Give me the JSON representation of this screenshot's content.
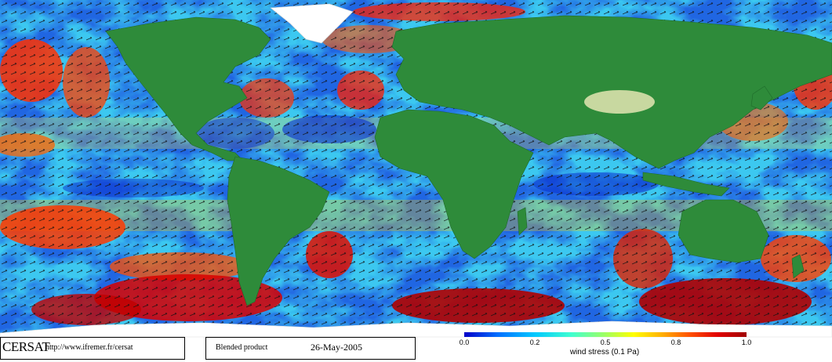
{
  "footer": {
    "brand": "CERSAT",
    "url": "http://www.ifremer.fr/cersat",
    "product": "Blended product",
    "date": "26-May-2005"
  },
  "colorbar": {
    "ticks": [
      "0.0",
      "0.2",
      "0.5",
      "0.8",
      "1.0"
    ],
    "unit_label": "wind stress (0.1 Pa)",
    "range": [
      0.0,
      1.0
    ],
    "colors": [
      "#0000c8",
      "#0070ff",
      "#00c8ff",
      "#40ffd0",
      "#a0ff60",
      "#ffff00",
      "#ffb000",
      "#ff5000",
      "#e00000",
      "#a00000"
    ]
  },
  "map_colors": {
    "ocean_low": "#0a40e0",
    "ocean_mid": "#30c0f0",
    "ocean_high": "#ff3000",
    "ocean_max": "#a00000",
    "land": "#2e8b3a",
    "land_high": "#c8d8a0",
    "ice": "#ffffff"
  }
}
